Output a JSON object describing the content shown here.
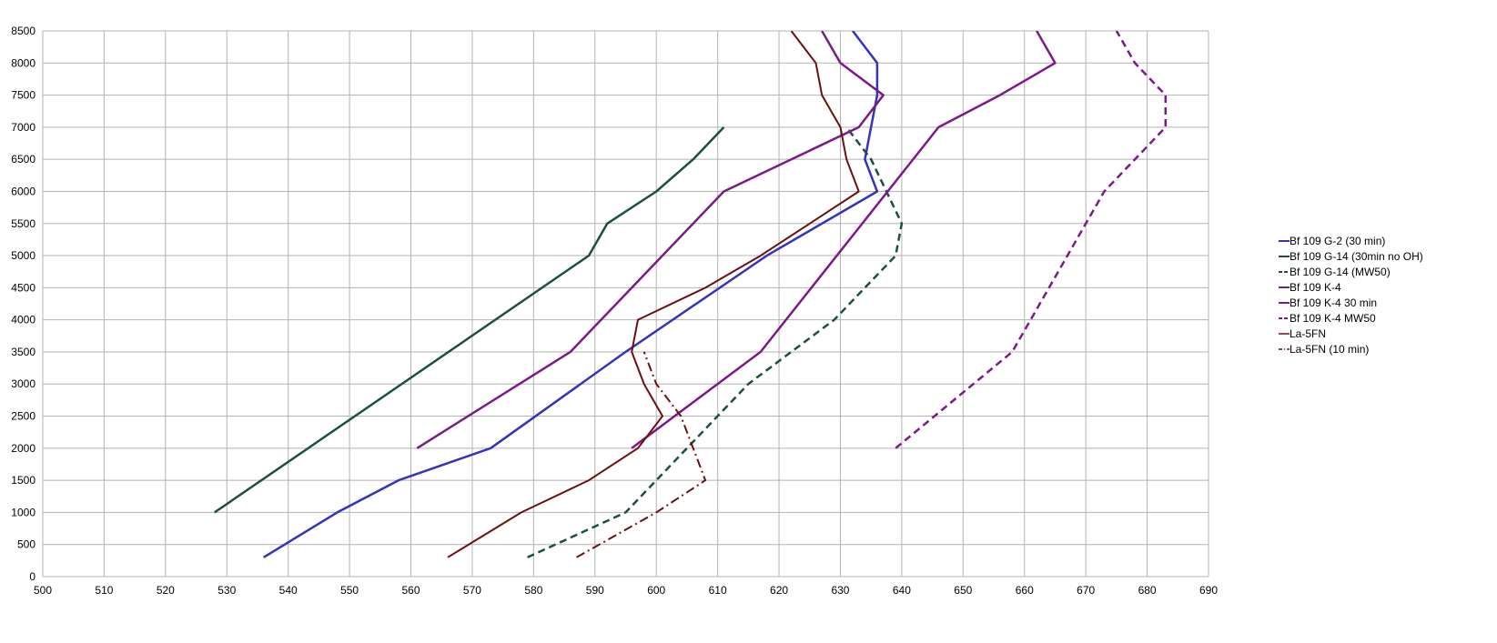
{
  "chart_data": {
    "type": "line",
    "title": "",
    "xlabel": "",
    "ylabel": "",
    "xlim": [
      500,
      690
    ],
    "ylim": [
      0,
      8500
    ],
    "x_ticks": [
      500,
      510,
      520,
      530,
      540,
      550,
      560,
      570,
      580,
      590,
      600,
      610,
      620,
      630,
      640,
      650,
      660,
      670,
      680,
      690
    ],
    "y_ticks": [
      0,
      500,
      1000,
      1500,
      2000,
      2500,
      3000,
      3500,
      4000,
      4500,
      5000,
      5500,
      6000,
      6500,
      7000,
      7500,
      8000,
      8500
    ],
    "grid": true,
    "legend_position": "right",
    "series": [
      {
        "name": "Bf 109 G-2 (30 min)",
        "color": "#3333bb",
        "dash": "solid",
        "width": 2.5,
        "points": [
          [
            536,
            300
          ],
          [
            548,
            1000
          ],
          [
            558,
            1500
          ],
          [
            573,
            2000
          ],
          [
            595,
            3500
          ],
          [
            618,
            5000
          ],
          [
            636,
            6000
          ],
          [
            634,
            6500
          ],
          [
            636,
            7500
          ],
          [
            636,
            8000
          ],
          [
            632,
            8500
          ]
        ]
      },
      {
        "name": "Bf 109 G-14 (30min no OH)",
        "color": "#1b4f44",
        "dash": "solid",
        "width": 2.5,
        "points": [
          [
            528,
            1000
          ],
          [
            589,
            5000
          ],
          [
            592,
            5500
          ],
          [
            600,
            6000
          ],
          [
            606,
            6500
          ],
          [
            611,
            7000
          ]
        ]
      },
      {
        "name": "Bf 109 G-14 (MW50)",
        "color": "#1b4f44",
        "dash": "dashed",
        "width": 2.5,
        "points": [
          [
            579,
            300
          ],
          [
            595,
            1000
          ],
          [
            615,
            3000
          ],
          [
            629,
            4000
          ],
          [
            634,
            4500
          ],
          [
            639,
            5000
          ],
          [
            640,
            5500
          ],
          [
            635,
            6500
          ],
          [
            631,
            7000
          ]
        ]
      },
      {
        "name": "Bf 109 K-4",
        "color": "#7a1a88",
        "dash": "solid",
        "width": 2.5,
        "points": [
          [
            561,
            2000
          ],
          [
            586,
            3500
          ],
          [
            611,
            6000
          ],
          [
            633,
            7000
          ],
          [
            637,
            7500
          ],
          [
            630,
            8000
          ],
          [
            627,
            8500
          ]
        ]
      },
      {
        "name": "Bf 109 K-4 30 min",
        "color": "#7a1a88",
        "dash": "solid",
        "width": 2.5,
        "points": [
          [
            596,
            2000
          ],
          [
            617,
            3500
          ],
          [
            646,
            7000
          ],
          [
            656,
            7500
          ],
          [
            665,
            8000
          ],
          [
            662,
            8500
          ]
        ]
      },
      {
        "name": "Bf 109 K-4 MW50",
        "color": "#7a1a88",
        "dash": "dashed",
        "width": 2.5,
        "points": [
          [
            639,
            2000
          ],
          [
            658,
            3500
          ],
          [
            673,
            6000
          ],
          [
            683,
            7000
          ],
          [
            683,
            7500
          ],
          [
            678,
            8000
          ],
          [
            675,
            8500
          ]
        ]
      },
      {
        "name": "La-5FN",
        "color": "#6b0f0f",
        "dash": "solid",
        "width": 2,
        "points": [
          [
            566,
            300
          ],
          [
            578,
            1000
          ],
          [
            589,
            1500
          ],
          [
            597,
            2000
          ],
          [
            601,
            2500
          ],
          [
            598,
            3000
          ],
          [
            596,
            3500
          ],
          [
            597,
            4000
          ],
          [
            608,
            4500
          ],
          [
            617,
            5000
          ],
          [
            625,
            5500
          ],
          [
            633,
            6000
          ],
          [
            631,
            6500
          ],
          [
            630,
            7000
          ],
          [
            627,
            7500
          ],
          [
            626,
            8000
          ],
          [
            622,
            8500
          ]
        ]
      },
      {
        "name": "La-5FN (10 min)",
        "color": "#6b0f0f",
        "dash": "dashdot",
        "width": 2,
        "points": [
          [
            587,
            300
          ],
          [
            600,
            1000
          ],
          [
            608,
            1500
          ],
          [
            606,
            2000
          ],
          [
            604,
            2500
          ],
          [
            600,
            3000
          ],
          [
            598,
            3500
          ]
        ]
      }
    ]
  }
}
